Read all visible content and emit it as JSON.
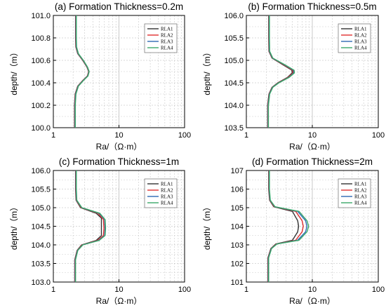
{
  "chart_data": [
    {
      "type": "line",
      "title": "(a) Formation Thickness=0.2m",
      "xlabel": "Ra/（Ω·m）",
      "ylabel": "depth/（m）",
      "x_scale": "log",
      "xlim": [
        1,
        100
      ],
      "ylim": [
        100.0,
        101.0
      ],
      "x_ticks": [
        "1",
        "10",
        "100"
      ],
      "y_ticks": [
        "100.0",
        "100.2",
        "100.4",
        "100.6",
        "100.8",
        "101.0"
      ],
      "grid": "dashed",
      "legend_position": "top-right",
      "series": [
        {
          "name": "RLA1",
          "color": "#333333",
          "points": [
            [
              2.18,
              101.0
            ],
            [
              2.18,
              100.8
            ],
            [
              2.2,
              100.72
            ],
            [
              2.35,
              100.66
            ],
            [
              2.8,
              100.6
            ],
            [
              3.25,
              100.54
            ],
            [
              3.45,
              100.5
            ],
            [
              3.3,
              100.46
            ],
            [
              2.8,
              100.42
            ],
            [
              2.35,
              100.37
            ],
            [
              2.15,
              100.3
            ],
            [
              2.1,
              100.2
            ],
            [
              2.1,
              100.0
            ]
          ]
        },
        {
          "name": "RLA2",
          "color": "#e03030",
          "points": [
            [
              2.2,
              101.0
            ],
            [
              2.2,
              100.8
            ],
            [
              2.22,
              100.72
            ],
            [
              2.37,
              100.66
            ],
            [
              2.82,
              100.6
            ],
            [
              3.27,
              100.54
            ],
            [
              3.47,
              100.5
            ],
            [
              3.32,
              100.46
            ],
            [
              2.82,
              100.42
            ],
            [
              2.37,
              100.37
            ],
            [
              2.17,
              100.3
            ],
            [
              2.12,
              100.2
            ],
            [
              2.12,
              100.0
            ]
          ]
        },
        {
          "name": "RLA3",
          "color": "#2d6ab4",
          "points": [
            [
              2.22,
              101.0
            ],
            [
              2.22,
              100.8
            ],
            [
              2.24,
              100.72
            ],
            [
              2.39,
              100.66
            ],
            [
              2.85,
              100.6
            ],
            [
              3.3,
              100.54
            ],
            [
              3.5,
              100.5
            ],
            [
              3.35,
              100.46
            ],
            [
              2.85,
              100.42
            ],
            [
              2.39,
              100.37
            ],
            [
              2.19,
              100.3
            ],
            [
              2.14,
              100.2
            ],
            [
              2.14,
              100.0
            ]
          ]
        },
        {
          "name": "RLA4",
          "color": "#3aa86a",
          "points": [
            [
              2.24,
              101.0
            ],
            [
              2.24,
              100.8
            ],
            [
              2.26,
              100.72
            ],
            [
              2.41,
              100.66
            ],
            [
              2.87,
              100.6
            ],
            [
              3.32,
              100.54
            ],
            [
              3.52,
              100.5
            ],
            [
              3.37,
              100.46
            ],
            [
              2.87,
              100.42
            ],
            [
              2.41,
              100.37
            ],
            [
              2.21,
              100.3
            ],
            [
              2.16,
              100.2
            ],
            [
              2.16,
              100.0
            ]
          ]
        }
      ]
    },
    {
      "type": "line",
      "title": "(b) Formation Thickness=0.5m",
      "xlabel": "Ra/（Ω·m）",
      "ylabel": "depth/（m）",
      "x_scale": "log",
      "xlim": [
        1,
        100
      ],
      "ylim": [
        103.5,
        106.0
      ],
      "x_ticks": [
        "1",
        "10",
        "100"
      ],
      "y_ticks": [
        "103.5",
        "104.0",
        "104.5",
        "105.0",
        "105.5",
        "106.0"
      ],
      "grid": "dashed",
      "legend_position": "top-right",
      "series": [
        {
          "name": "RLA1",
          "color": "#333333",
          "points": [
            [
              2.18,
              106.0
            ],
            [
              2.18,
              105.5
            ],
            [
              2.2,
              105.2
            ],
            [
              2.45,
              105.05
            ],
            [
              3.6,
              104.9
            ],
            [
              4.9,
              104.78
            ],
            [
              4.95,
              104.72
            ],
            [
              4.2,
              104.62
            ],
            [
              3.0,
              104.5
            ],
            [
              2.45,
              104.4
            ],
            [
              2.2,
              104.25
            ],
            [
              2.1,
              104.0
            ],
            [
              2.1,
              103.5
            ]
          ]
        },
        {
          "name": "RLA2",
          "color": "#e03030",
          "points": [
            [
              2.2,
              106.0
            ],
            [
              2.2,
              105.5
            ],
            [
              2.22,
              105.2
            ],
            [
              2.48,
              105.05
            ],
            [
              3.7,
              104.9
            ],
            [
              5.05,
              104.78
            ],
            [
              5.1,
              104.72
            ],
            [
              4.3,
              104.62
            ],
            [
              3.05,
              104.5
            ],
            [
              2.48,
              104.4
            ],
            [
              2.22,
              104.25
            ],
            [
              2.12,
              104.0
            ],
            [
              2.12,
              103.5
            ]
          ]
        },
        {
          "name": "RLA3",
          "color": "#2d6ab4",
          "points": [
            [
              2.22,
              106.0
            ],
            [
              2.22,
              105.5
            ],
            [
              2.24,
              105.2
            ],
            [
              2.5,
              105.05
            ],
            [
              3.8,
              104.9
            ],
            [
              5.2,
              104.78
            ],
            [
              5.25,
              104.72
            ],
            [
              4.4,
              104.62
            ],
            [
              3.1,
              104.5
            ],
            [
              2.5,
              104.4
            ],
            [
              2.24,
              104.25
            ],
            [
              2.14,
              104.0
            ],
            [
              2.14,
              103.5
            ]
          ]
        },
        {
          "name": "RLA4",
          "color": "#3aa86a",
          "points": [
            [
              2.24,
              106.0
            ],
            [
              2.24,
              105.5
            ],
            [
              2.26,
              105.2
            ],
            [
              2.52,
              105.05
            ],
            [
              3.85,
              104.9
            ],
            [
              5.3,
              104.78
            ],
            [
              5.35,
              104.72
            ],
            [
              4.45,
              104.62
            ],
            [
              3.12,
              104.5
            ],
            [
              2.52,
              104.4
            ],
            [
              2.26,
              104.25
            ],
            [
              2.16,
              104.0
            ],
            [
              2.16,
              103.5
            ]
          ]
        }
      ]
    },
    {
      "type": "line",
      "title": "(c) Formation Thickness=1m",
      "xlabel": "Ra/（Ω·m）",
      "ylabel": "depth/（m）",
      "x_scale": "log",
      "xlim": [
        1,
        100
      ],
      "ylim": [
        103.0,
        106.0
      ],
      "x_ticks": [
        "1",
        "10",
        "100"
      ],
      "y_ticks": [
        "103.0",
        "103.5",
        "104.0",
        "104.5",
        "105.0",
        "105.5",
        "106.0"
      ],
      "grid": "dashed",
      "legend_position": "top-right",
      "series": [
        {
          "name": "RLA1",
          "color": "#333333",
          "points": [
            [
              2.18,
              106.0
            ],
            [
              2.18,
              105.5
            ],
            [
              2.22,
              105.2
            ],
            [
              2.6,
              105.0
            ],
            [
              4.5,
              104.85
            ],
            [
              5.4,
              104.72
            ],
            [
              5.4,
              104.25
            ],
            [
              4.5,
              104.12
            ],
            [
              2.7,
              104.0
            ],
            [
              2.3,
              103.85
            ],
            [
              2.12,
              103.6
            ],
            [
              2.12,
              103.0
            ]
          ]
        },
        {
          "name": "RLA2",
          "color": "#e03030",
          "points": [
            [
              2.2,
              106.0
            ],
            [
              2.2,
              105.5
            ],
            [
              2.24,
              105.2
            ],
            [
              2.65,
              105.0
            ],
            [
              4.8,
              104.85
            ],
            [
              5.8,
              104.68
            ],
            [
              5.9,
              104.45
            ],
            [
              5.8,
              104.25
            ],
            [
              4.7,
              104.12
            ],
            [
              2.75,
              104.0
            ],
            [
              2.32,
              103.85
            ],
            [
              2.14,
              103.6
            ],
            [
              2.14,
              103.0
            ]
          ]
        },
        {
          "name": "RLA3",
          "color": "#2d6ab4",
          "points": [
            [
              2.22,
              106.0
            ],
            [
              2.22,
              105.5
            ],
            [
              2.26,
              105.2
            ],
            [
              2.7,
              105.0
            ],
            [
              5.0,
              104.85
            ],
            [
              6.05,
              104.68
            ],
            [
              6.15,
              104.45
            ],
            [
              6.05,
              104.25
            ],
            [
              4.9,
              104.12
            ],
            [
              2.8,
              104.0
            ],
            [
              2.34,
              103.85
            ],
            [
              2.16,
              103.6
            ],
            [
              2.16,
              103.0
            ]
          ]
        },
        {
          "name": "RLA4",
          "color": "#3aa86a",
          "points": [
            [
              2.24,
              106.0
            ],
            [
              2.24,
              105.5
            ],
            [
              2.28,
              105.2
            ],
            [
              2.72,
              105.0
            ],
            [
              5.1,
              104.85
            ],
            [
              6.15,
              104.68
            ],
            [
              6.25,
              104.45
            ],
            [
              6.15,
              104.25
            ],
            [
              5.0,
              104.12
            ],
            [
              2.82,
              104.0
            ],
            [
              2.36,
              103.85
            ],
            [
              2.18,
              103.6
            ],
            [
              2.18,
              103.0
            ]
          ]
        }
      ]
    },
    {
      "type": "line",
      "title": "(d) Formation Thickness=2m",
      "xlabel": "Ra/（Ω·m）",
      "ylabel": "depth/（m）",
      "x_scale": "log",
      "xlim": [
        1,
        100
      ],
      "ylim": [
        101,
        107
      ],
      "x_ticks": [
        "1",
        "10",
        "100"
      ],
      "y_ticks": [
        "101",
        "102",
        "103",
        "104",
        "105",
        "106",
        "107"
      ],
      "grid": "dashed",
      "legend_position": "top-right",
      "series": [
        {
          "name": "RLA1",
          "color": "#333333",
          "points": [
            [
              2.18,
              107.0
            ],
            [
              2.18,
              106.0
            ],
            [
              2.25,
              105.4
            ],
            [
              2.6,
              105.05
            ],
            [
              5.0,
              104.8
            ],
            [
              6.0,
              104.3
            ],
            [
              6.2,
              104.0
            ],
            [
              6.0,
              103.7
            ],
            [
              5.0,
              103.25
            ],
            [
              2.8,
              103.05
            ],
            [
              2.35,
              102.8
            ],
            [
              2.12,
              102.3
            ],
            [
              2.12,
              101.0
            ]
          ]
        },
        {
          "name": "RLA2",
          "color": "#e03030",
          "points": [
            [
              2.2,
              107.0
            ],
            [
              2.2,
              106.0
            ],
            [
              2.27,
              105.4
            ],
            [
              2.65,
              105.05
            ],
            [
              5.6,
              104.8
            ],
            [
              7.0,
              104.3
            ],
            [
              7.3,
              104.0
            ],
            [
              7.0,
              103.7
            ],
            [
              5.6,
              103.25
            ],
            [
              2.85,
              103.05
            ],
            [
              2.37,
              102.8
            ],
            [
              2.14,
              102.3
            ],
            [
              2.14,
              101.0
            ]
          ]
        },
        {
          "name": "RLA3",
          "color": "#2d6ab4",
          "points": [
            [
              2.22,
              107.0
            ],
            [
              2.22,
              106.0
            ],
            [
              2.29,
              105.4
            ],
            [
              2.7,
              105.05
            ],
            [
              6.0,
              104.8
            ],
            [
              7.9,
              104.3
            ],
            [
              8.3,
              104.0
            ],
            [
              7.9,
              103.7
            ],
            [
              6.0,
              103.25
            ],
            [
              2.9,
              103.05
            ],
            [
              2.39,
              102.8
            ],
            [
              2.16,
              102.3
            ],
            [
              2.16,
              101.0
            ]
          ]
        },
        {
          "name": "RLA4",
          "color": "#3aa86a",
          "points": [
            [
              2.24,
              107.0
            ],
            [
              2.24,
              106.0
            ],
            [
              2.31,
              105.4
            ],
            [
              2.72,
              105.05
            ],
            [
              6.3,
              104.8
            ],
            [
              8.3,
              104.3
            ],
            [
              8.8,
              104.0
            ],
            [
              8.3,
              103.7
            ],
            [
              6.3,
              103.25
            ],
            [
              2.92,
              103.05
            ],
            [
              2.41,
              102.8
            ],
            [
              2.18,
              102.3
            ],
            [
              2.18,
              101.0
            ]
          ]
        }
      ]
    }
  ]
}
